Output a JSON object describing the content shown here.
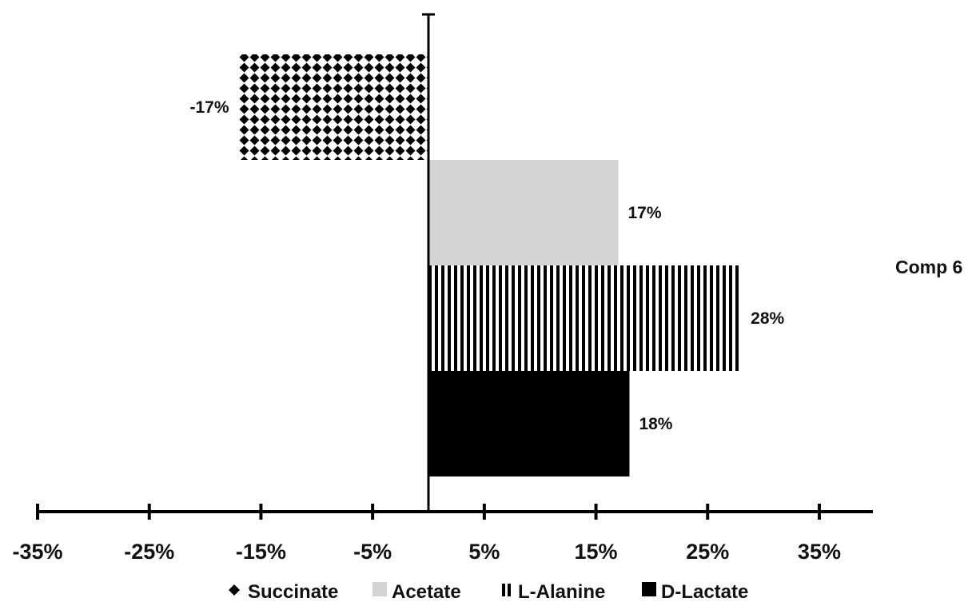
{
  "chart_data": {
    "type": "bar",
    "orientation": "horizontal",
    "category": "Comp 6",
    "series": [
      {
        "name": "Succinate",
        "value": -17,
        "label": "-17%",
        "fill": "diamond-pattern",
        "color": "#000000"
      },
      {
        "name": "Acetate",
        "value": 17,
        "label": "17%",
        "fill": "solid",
        "color": "#d4d4d4"
      },
      {
        "name": "L-Alanine",
        "value": 28,
        "label": "28%",
        "fill": "vertical-stripes",
        "color": "#000000"
      },
      {
        "name": "D-Lactate",
        "value": 18,
        "label": "18%",
        "fill": "solid",
        "color": "#000000"
      }
    ],
    "xticks": [
      -35,
      -25,
      -15,
      -5,
      5,
      15,
      25,
      35
    ],
    "xtick_labels": [
      "-35%",
      "-25%",
      "-15%",
      "-5%",
      "5%",
      "15%",
      "25%",
      "35%"
    ],
    "xlim": [
      -35,
      40
    ],
    "grid": false,
    "legend_position": "bottom"
  }
}
